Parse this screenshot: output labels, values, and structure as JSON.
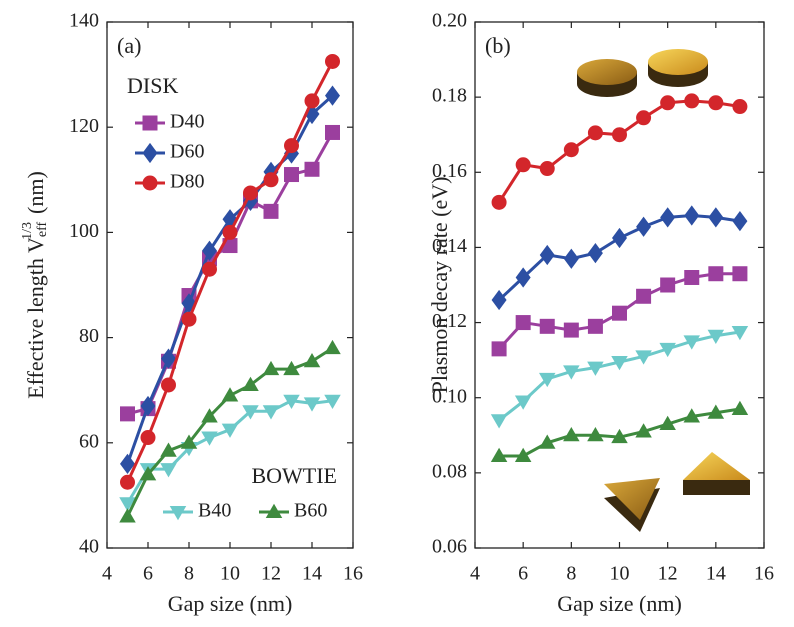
{
  "chart_data": [
    {
      "type": "line",
      "panel_label": "(a)",
      "xlabel": "Gap size (nm)",
      "ylabel": {
        "text": "Effective length V",
        "sub": "eff",
        "sup": "1/3",
        "unit": "(nm)"
      },
      "xlim": [
        4,
        16
      ],
      "xticks": [
        4,
        6,
        8,
        10,
        12,
        14,
        16
      ],
      "ylim": [
        40,
        140
      ],
      "yticks": [
        40,
        60,
        80,
        100,
        120,
        140
      ],
      "x": [
        5,
        6,
        7,
        8,
        9,
        10,
        11,
        12,
        13,
        14,
        15
      ],
      "legend_titles": [
        "DISK",
        "BOWTIE"
      ],
      "series": [
        {
          "name": "D40",
          "color": "#9b3f9e",
          "marker": "square",
          "values": [
            65.5,
            66.5,
            75.5,
            88,
            95,
            97.5,
            106,
            104,
            111,
            112,
            119
          ]
        },
        {
          "name": "D60",
          "color": "#2c4fa3",
          "marker": "diamond",
          "values": [
            56,
            67,
            76,
            86.5,
            96.5,
            102.5,
            106,
            111.5,
            115,
            122.5,
            126
          ]
        },
        {
          "name": "D80",
          "color": "#d3262b",
          "marker": "circle",
          "values": [
            52.5,
            61,
            71,
            83.5,
            93,
            100,
            107.5,
            110,
            116.5,
            125,
            132.5
          ]
        },
        {
          "name": "B40",
          "color": "#6cc9c9",
          "marker": "triangle-down",
          "values": [
            48.5,
            55,
            55,
            59,
            61,
            62.5,
            66,
            66,
            68,
            67.5,
            68
          ]
        },
        {
          "name": "B60",
          "color": "#3e8a3e",
          "marker": "triangle-up",
          "values": [
            46,
            54,
            58.5,
            60,
            65,
            69,
            71,
            74,
            74,
            75.5,
            78
          ]
        }
      ]
    },
    {
      "type": "line",
      "panel_label": "(b)",
      "xlabel": "Gap size (nm)",
      "ylabel": {
        "text": "Plasmon decay rate  (eV)"
      },
      "xlim": [
        4,
        16
      ],
      "xticks": [
        4,
        6,
        8,
        10,
        12,
        14,
        16
      ],
      "ylim": [
        0.06,
        0.2
      ],
      "yticks": [
        0.06,
        0.08,
        {
          "value": 0.1,
          "label": "0.10"
        },
        0.12,
        0.14,
        0.16,
        0.18,
        {
          "value": 0.2,
          "label": "0.20"
        }
      ],
      "x": [
        5,
        6,
        7,
        8,
        9,
        10,
        11,
        12,
        13,
        14,
        15
      ],
      "series": [
        {
          "color": "#d3262b",
          "marker": "circle",
          "values": [
            0.152,
            0.162,
            0.161,
            0.166,
            0.1705,
            0.17,
            0.1745,
            0.1785,
            0.179,
            0.1785,
            0.1775
          ]
        },
        {
          "color": "#2c4fa3",
          "marker": "diamond",
          "values": [
            0.126,
            0.132,
            0.138,
            0.137,
            0.1385,
            0.1425,
            0.1455,
            0.148,
            0.1485,
            0.148,
            0.147
          ]
        },
        {
          "color": "#9b3f9e",
          "marker": "square",
          "values": [
            0.113,
            0.12,
            0.119,
            0.118,
            0.119,
            0.1225,
            0.127,
            0.13,
            0.132,
            0.133,
            0.133
          ]
        },
        {
          "color": "#6cc9c9",
          "marker": "triangle-down",
          "values": [
            0.094,
            0.099,
            0.105,
            0.107,
            0.108,
            0.1095,
            0.111,
            0.113,
            0.115,
            0.1165,
            0.1175
          ]
        },
        {
          "color": "#3e8a3e",
          "marker": "triangle-up",
          "values": [
            0.0845,
            0.0845,
            0.088,
            0.09,
            0.09,
            0.0895,
            0.091,
            0.093,
            0.095,
            0.096,
            0.097
          ]
        }
      ]
    }
  ]
}
